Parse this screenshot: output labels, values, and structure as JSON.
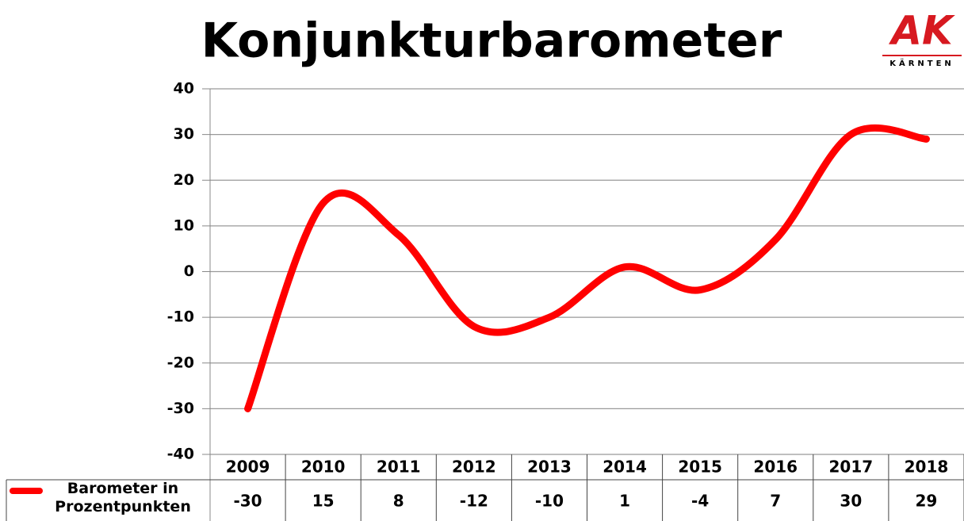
{
  "chart_data": {
    "type": "line",
    "title": "Konjunkturbarometer",
    "logo": {
      "text": "AK",
      "subtitle": "KÄRNTEN"
    },
    "categories": [
      "2009",
      "2010",
      "2011",
      "2012",
      "2013",
      "2014",
      "2015",
      "2016",
      "2017",
      "2018"
    ],
    "series": [
      {
        "name": "Barometer in Prozentpunkten",
        "color": "#ff0000",
        "values": [
          -30,
          15,
          8,
          -12,
          -10,
          1,
          -4,
          7,
          30,
          29
        ]
      }
    ],
    "ylim": [
      -40,
      40
    ],
    "yticks": [
      -40,
      -30,
      -20,
      -10,
      0,
      10,
      20,
      30,
      40
    ],
    "grid": true
  }
}
